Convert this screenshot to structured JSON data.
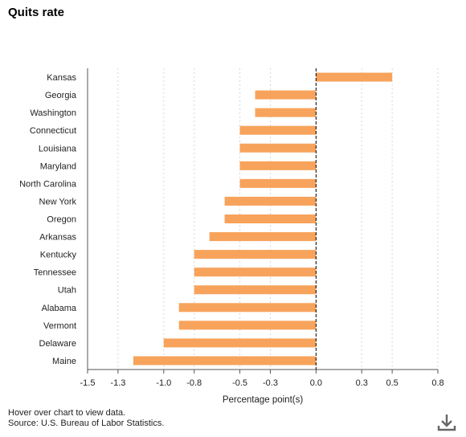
{
  "title": "Quits rate",
  "footer": {
    "hover_note": "Hover over chart to view data.",
    "source": "Source: U.S. Bureau of Labor Statistics."
  },
  "download_icon": "download-icon",
  "colors": {
    "bar": "#f7a35c",
    "axis": "#555555",
    "grid": "#d6d6d6",
    "zero_line": "#000000"
  },
  "chart_data": {
    "type": "bar",
    "orientation": "horizontal",
    "categories": [
      "Kansas",
      "Georgia",
      "Washington",
      "Connecticut",
      "Louisiana",
      "Maryland",
      "North Carolina",
      "New York",
      "Oregon",
      "Arkansas",
      "Kentucky",
      "Tennessee",
      "Utah",
      "Alabama",
      "Vermont",
      "Delaware",
      "Maine"
    ],
    "values": [
      0.5,
      -0.4,
      -0.4,
      -0.5,
      -0.5,
      -0.5,
      -0.5,
      -0.6,
      -0.6,
      -0.7,
      -0.8,
      -0.8,
      -0.8,
      -0.9,
      -0.9,
      -1.0,
      -1.2
    ],
    "xlabel": "Percentage point(s)",
    "ylabel": "",
    "xlim": [
      -1.5,
      0.8
    ],
    "ticks": [
      -1.5,
      -1.3,
      -1.0,
      -0.8,
      -0.5,
      -0.3,
      0.0,
      0.3,
      0.5,
      0.8
    ],
    "tick_labels": [
      "-1.5",
      "-1.3",
      "-1.0",
      "-0.8",
      "-0.5",
      "-0.3",
      "0.0",
      "0.3",
      "0.5",
      "0.8"
    ],
    "grid": true,
    "zero_line": "dashed"
  }
}
